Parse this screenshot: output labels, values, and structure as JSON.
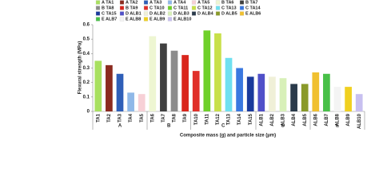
{
  "chart_data": {
    "type": "bar",
    "y_label": "Flexural strength (MPa)",
    "x_label": "Composite mass (g) and particle size (µm)",
    "ylim": [
      0,
      0.6
    ],
    "yticks": [
      0,
      0.1,
      0.2,
      0.3,
      0.4,
      0.5,
      0.6
    ],
    "groups": [
      {
        "label": "A",
        "categories": [
          "TA1",
          "TA2",
          "TA3",
          "TA4",
          "TA5"
        ]
      },
      {
        "label": "B",
        "categories": [
          "TA6",
          "TA7",
          "TA8",
          "TA9"
        ]
      },
      {
        "label": "C",
        "categories": [
          "TA10",
          "TA11",
          "TA12",
          "TA13",
          "TA14",
          "TA15"
        ]
      },
      {
        "label": "D",
        "categories": [
          "ALB1",
          "ALB2",
          "ALB3",
          "ALB4",
          "ALB5"
        ]
      },
      {
        "label": "E",
        "categories": [
          "ALB6",
          "ALB7",
          "ALB8",
          "ALB9",
          "ALB10"
        ]
      }
    ],
    "series": [
      {
        "name": "A TA1",
        "color": "#a8e05f",
        "values": [
          0.35
        ]
      },
      {
        "name": "A TA2",
        "color": "#8b2a1e",
        "values": [
          0.32
        ]
      },
      {
        "name": "A TA3",
        "color": "#2f5fb8",
        "values": [
          0.26
        ]
      },
      {
        "name": "A TA4",
        "color": "#8fb8e8",
        "values": [
          0.13
        ]
      },
      {
        "name": "A TA5",
        "color": "#f7d0d6",
        "values": [
          0.12
        ]
      },
      {
        "name": "B TA6",
        "color": "#eef6d2",
        "values": [
          0.52
        ]
      },
      {
        "name": "B TA7",
        "color": "#404040",
        "values": [
          0.47
        ]
      },
      {
        "name": "B TA8",
        "color": "#8c8c8c",
        "values": [
          0.42
        ]
      },
      {
        "name": "B TA9",
        "color": "#d9261c",
        "values": [
          0.39
        ]
      },
      {
        "name": "C TA10",
        "color": "#e0302a",
        "values": [
          0.28
        ]
      },
      {
        "name": "C TA11",
        "color": "#6fd02a",
        "values": [
          0.56
        ]
      },
      {
        "name": "C TA12",
        "color": "#c8e04a",
        "values": [
          0.54
        ]
      },
      {
        "name": "C TA13",
        "color": "#6fe0f0",
        "values": [
          0.37
        ]
      },
      {
        "name": "C TA14",
        "color": "#3a78e0",
        "values": [
          0.3
        ]
      },
      {
        "name": "C TA15",
        "color": "#1a3a9c",
        "values": [
          0.24
        ]
      },
      {
        "name": "D ALB1",
        "color": "#5050c8",
        "values": [
          0.26
        ]
      },
      {
        "name": "D ALB2",
        "color": "#f0f0d8",
        "values": [
          0.24
        ]
      },
      {
        "name": "D ALB3",
        "color": "#d8f0b8",
        "values": [
          0.23
        ]
      },
      {
        "name": "D ALB4",
        "color": "#2a3a4a",
        "values": [
          0.19
        ]
      },
      {
        "name": "D ALB5",
        "color": "#8a9a2a",
        "values": [
          0.19
        ]
      },
      {
        "name": "E ALB6",
        "color": "#f0c030",
        "values": [
          0.27
        ]
      },
      {
        "name": "E ALB7",
        "color": "#48c048",
        "values": [
          0.26
        ]
      },
      {
        "name": "E ALB8",
        "color": "#f4f4f4",
        "values": [
          0.17
        ]
      },
      {
        "name": "E ALB9",
        "color": "#f0d020",
        "values": [
          0.17
        ]
      },
      {
        "name": "E ALB10",
        "color": "#c8c0f0",
        "values": [
          0.12
        ]
      }
    ]
  }
}
